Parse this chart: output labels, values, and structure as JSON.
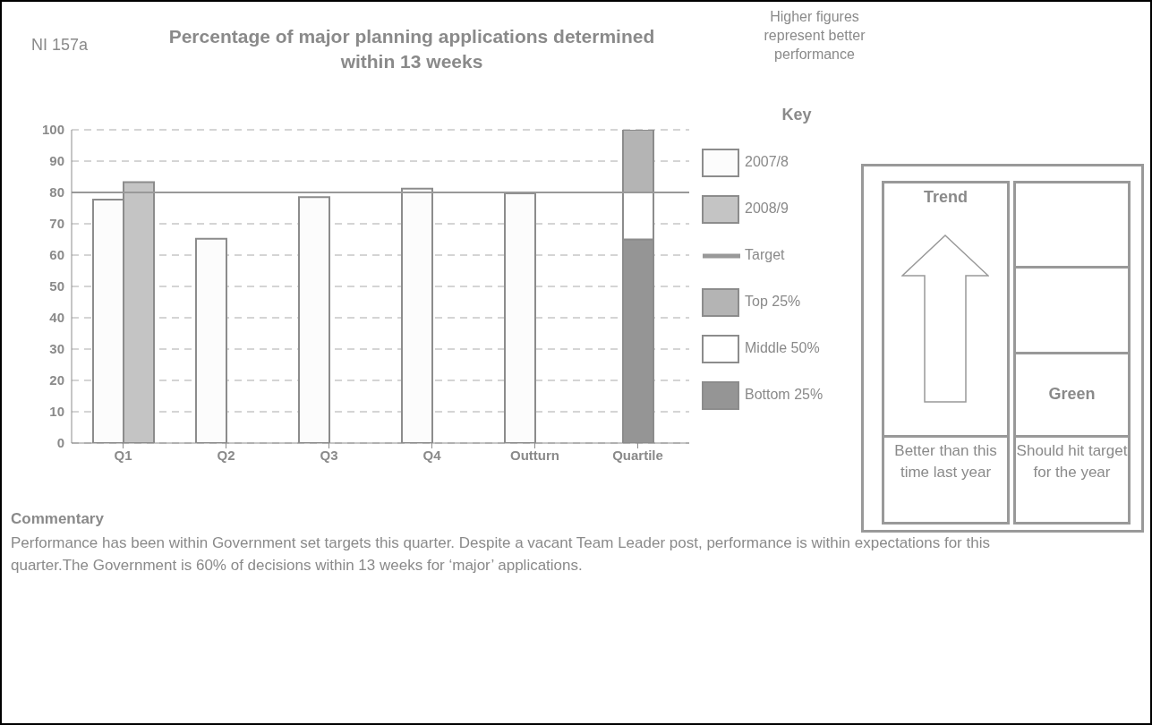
{
  "chart_data": {
    "type": "bar",
    "title": "Percentage of major planning applications determined within 13 weeks",
    "categories": [
      "Q1",
      "Q2",
      "Q3",
      "Q4",
      "Outturn",
      "Quartile"
    ],
    "series": [
      {
        "name": "2007/8",
        "color": "#fcfcfc",
        "values": [
          77.7,
          65.2,
          78.5,
          81.2,
          79.7,
          null
        ]
      },
      {
        "name": "2008/9",
        "color": "#c4c4c4",
        "values": [
          83.3,
          null,
          null,
          null,
          null,
          null
        ]
      },
      {
        "name": "Bottom 25%",
        "color": "#959595",
        "base": [
          null,
          null,
          null,
          null,
          null,
          0
        ],
        "values": [
          null,
          null,
          null,
          null,
          null,
          65
        ]
      },
      {
        "name": "Middle 50%",
        "color": "#ffffff",
        "base": [
          null,
          null,
          null,
          null,
          null,
          65
        ],
        "values": [
          null,
          null,
          null,
          null,
          null,
          15
        ]
      },
      {
        "name": "Top 25%",
        "color": "#b4b4b4",
        "base": [
          null,
          null,
          null,
          null,
          null,
          80
        ],
        "values": [
          null,
          null,
          null,
          null,
          null,
          20
        ]
      }
    ],
    "ylim": [
      0,
      100
    ],
    "yticks": [
      0,
      10,
      20,
      30,
      40,
      50,
      60,
      70,
      80,
      90,
      100
    ],
    "grid": "y",
    "ref_lines": [
      {
        "axis": "y",
        "value": 80,
        "label": "Target",
        "color": "#999999"
      }
    ],
    "legend": "right",
    "legend_title": "Key",
    "annotations": [
      "NI 157a",
      "Higher figures represent better performance",
      "Trend",
      "Green",
      "Better than this time last year",
      "Should hit target for the year",
      "Commentary",
      "Performance has been within Government set targets this quarter. Despite a vacant Team Leader post, performance is within expectations for this quarter.The Government is 60% of decisions within 13 weeks for ‘major’ applications."
    ]
  }
}
